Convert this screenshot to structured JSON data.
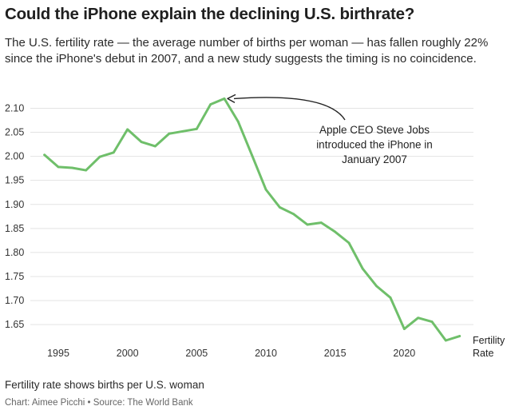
{
  "title": "Could the iPhone explain the declining U.S. birthrate?",
  "subtitle": "The U.S. fertility rate — the average number of births per woman — has fallen roughly 22% since the iPhone's debut in 2007, and a new study suggests the timing is no coincidence.",
  "footnote": "Fertility rate shows births per U.S. woman",
  "credit": "Chart: Aimee Picchi • Source: The World Bank",
  "chart_data": {
    "type": "line",
    "x": [
      1994,
      1995,
      1996,
      1997,
      1998,
      1999,
      2000,
      2001,
      2002,
      2003,
      2004,
      2005,
      2006,
      2007,
      2008,
      2009,
      2010,
      2011,
      2012,
      2013,
      2014,
      2015,
      2016,
      2017,
      2018,
      2019,
      2020,
      2021,
      2022,
      2023,
      2024
    ],
    "series": [
      {
        "name": "Fertility Rate",
        "color": "#6fbf6a",
        "values": [
          2.003,
          1.978,
          1.976,
          1.971,
          1.999,
          2.008,
          2.056,
          2.03,
          2.021,
          2.047,
          2.052,
          2.057,
          2.108,
          2.12,
          2.072,
          2.002,
          1.931,
          1.894,
          1.88,
          1.858,
          1.862,
          1.843,
          1.82,
          1.766,
          1.73,
          1.706,
          1.641,
          1.664,
          1.656,
          1.617,
          1.626
        ]
      }
    ],
    "xticks": [
      "1995",
      "2000",
      "2005",
      "2010",
      "2015",
      "2020"
    ],
    "yticks": [
      "1.65",
      "1.70",
      "1.75",
      "1.80",
      "1.85",
      "1.90",
      "1.95",
      "2.00",
      "2.05",
      "2.10"
    ],
    "xlim": [
      1993.5,
      2025
    ],
    "ylim": [
      1.617,
      2.129
    ],
    "grid": true,
    "annotation": {
      "lines": [
        "Apple CEO Steve Jobs",
        "introduced the iPhone in",
        "January 2007"
      ],
      "points_to_year": 2007
    },
    "series_label": [
      "Fertility",
      "Rate"
    ]
  }
}
